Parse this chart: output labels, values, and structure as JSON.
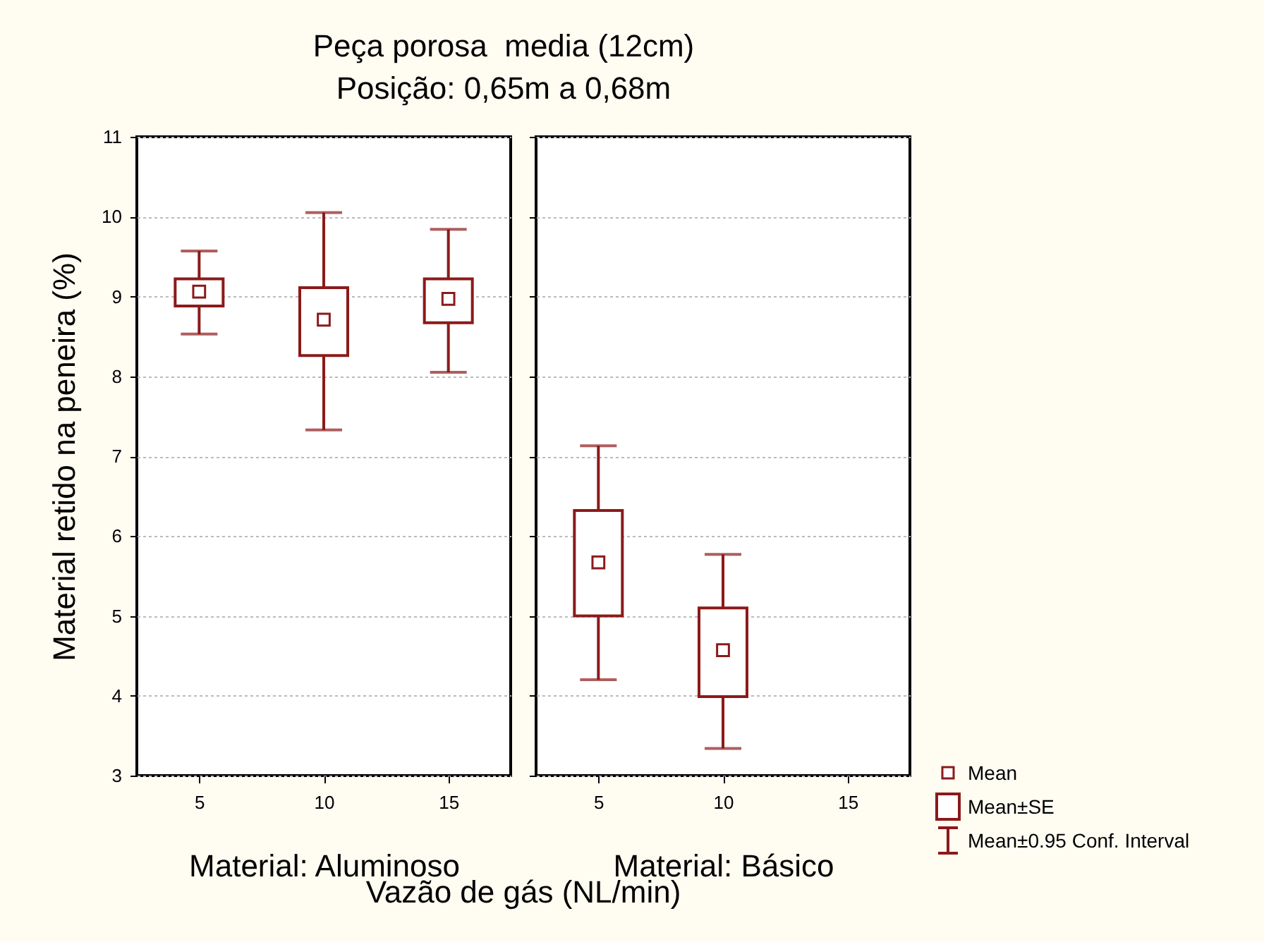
{
  "chart_data": [
    {
      "type": "box",
      "title": "Peça porosa  media (12cm)\nPosição: 0,65m a 0,68m",
      "xlabel": "Material: Aluminoso",
      "ylabel": "Material retido na peneira (%)",
      "categories": [
        "5",
        "10",
        "15"
      ],
      "color": "#8b1a1a",
      "boxes": [
        {
          "low": 8.53,
          "q1": 8.88,
          "median": 9.06,
          "q3": 9.22,
          "high": 9.57
        },
        {
          "low": 7.33,
          "q1": 8.26,
          "median": 8.71,
          "q3": 9.11,
          "high": 10.05
        },
        {
          "low": 8.05,
          "q1": 8.67,
          "median": 8.97,
          "q3": 9.22,
          "high": 9.84
        }
      ],
      "ylim": [
        3,
        11
      ],
      "yticks": [
        3,
        4,
        5,
        6,
        7,
        8,
        9,
        10,
        11
      ],
      "grid": "y",
      "annotations": [
        "Vazão de gás (NL/min)"
      ]
    },
    {
      "type": "box",
      "xlabel": "Material: Básico",
      "categories": [
        "5",
        "10",
        "15"
      ],
      "color": "#8b1a1a",
      "boxes": [
        {
          "low": 4.2,
          "q1": 5.0,
          "median": 5.67,
          "q3": 6.32,
          "high": 7.13
        },
        {
          "low": 3.34,
          "q1": 3.99,
          "median": 4.57,
          "q3": 5.1,
          "high": 5.77
        },
        null
      ],
      "ylim": [
        3,
        11
      ],
      "yticks": [
        3,
        4,
        5,
        6,
        7,
        8,
        9,
        10,
        11
      ],
      "grid": "y",
      "tick_labels": "x",
      "annotations": [
        "Mean",
        "Mean±SE",
        "Mean±0.95 Conf. Interval"
      ]
    }
  ]
}
